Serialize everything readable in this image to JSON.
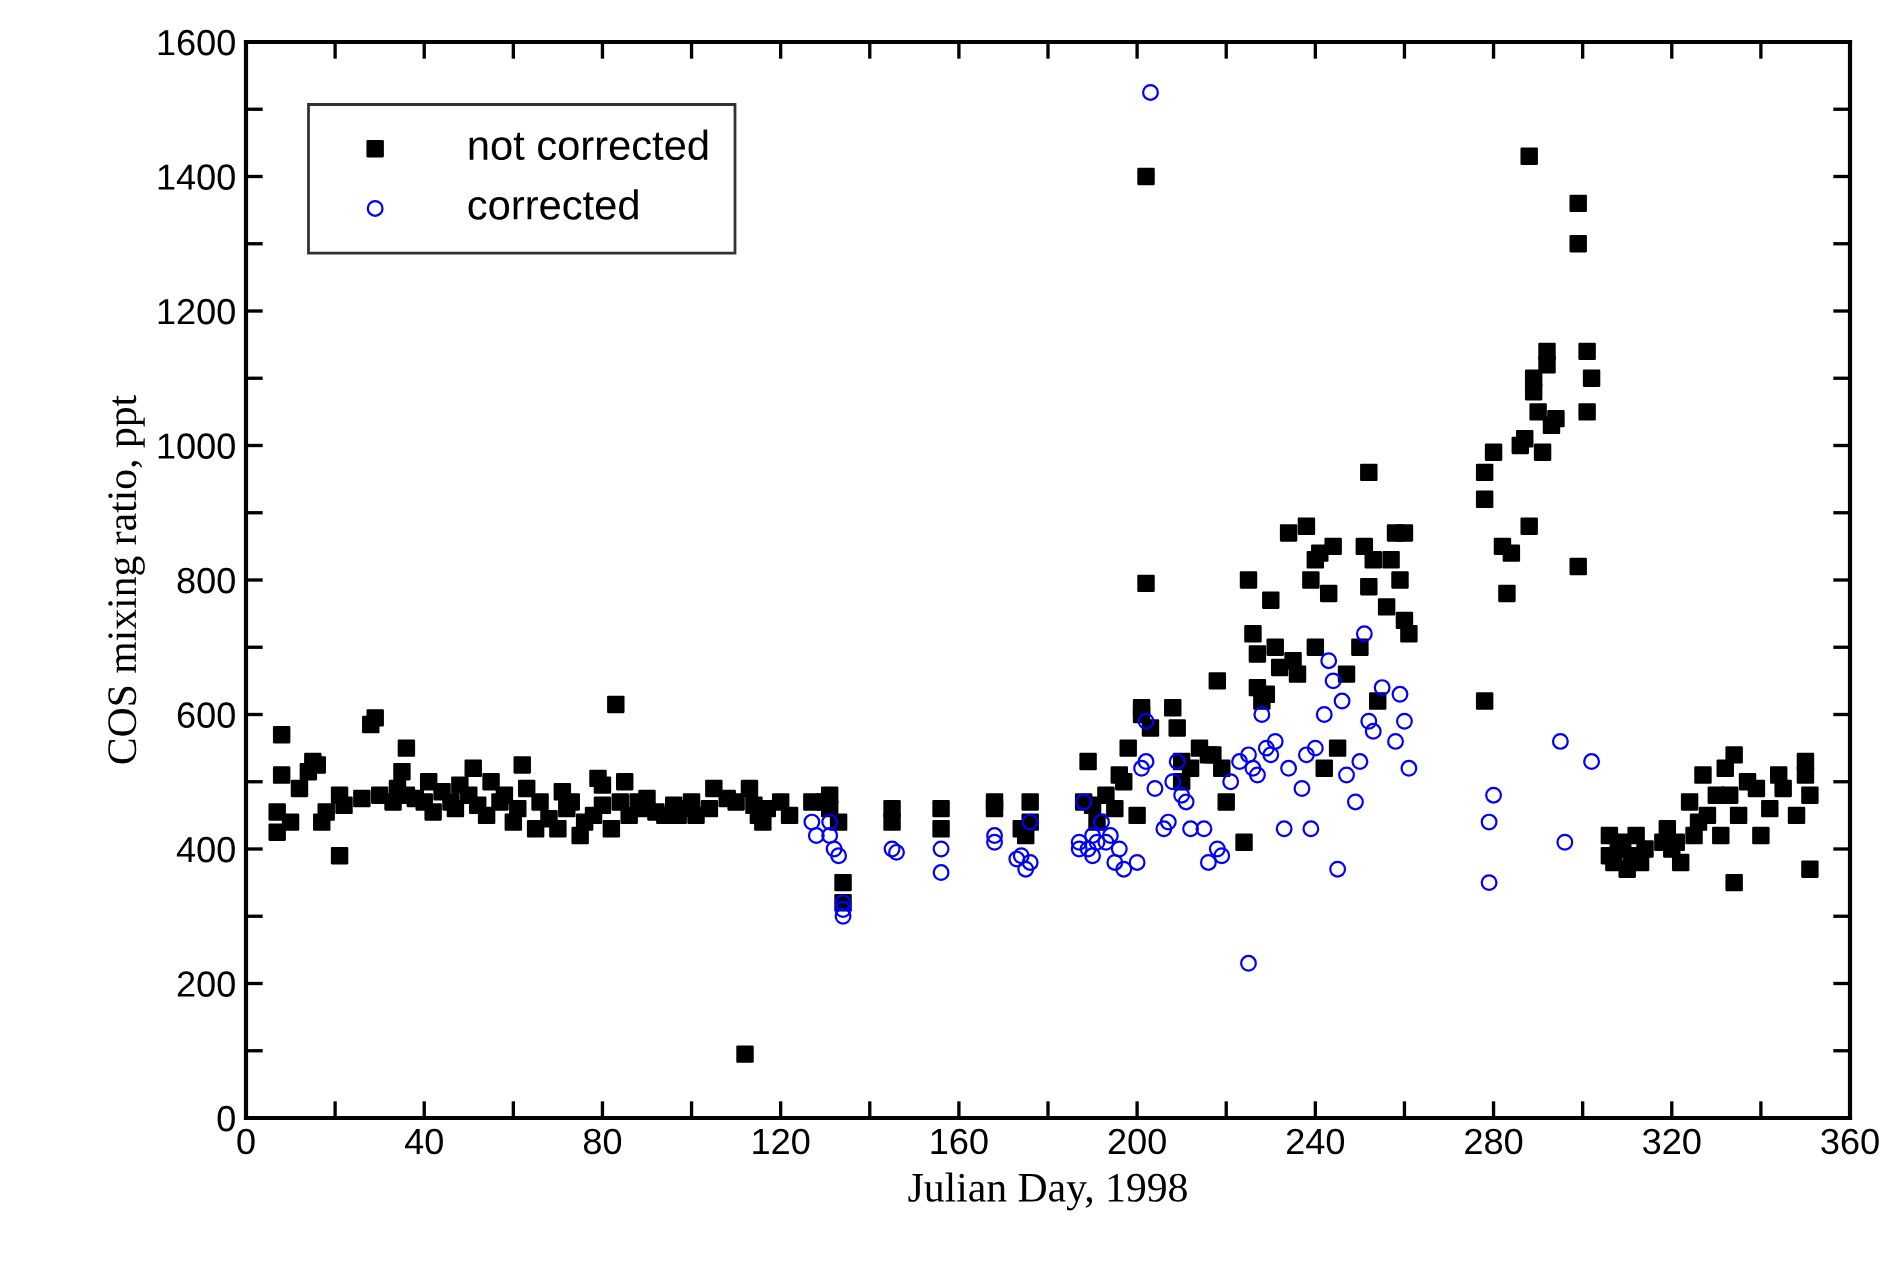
{
  "chart_data": {
    "type": "scatter",
    "xlabel": "Julian Day, 1998",
    "ylabel": "COS mixing ratio, ppt",
    "xlim": [
      0,
      360
    ],
    "ylim": [
      0,
      1600
    ],
    "xticks": [
      0,
      {
        "value": 20,
        "label": null
      },
      40,
      {
        "value": 60,
        "label": null
      },
      80,
      {
        "value": 100,
        "label": null
      },
      120,
      {
        "value": 140,
        "label": null
      },
      160,
      {
        "value": 180,
        "label": null
      },
      200,
      {
        "value": 220,
        "label": null
      },
      240,
      {
        "value": 260,
        "label": null
      },
      280,
      {
        "value": 300,
        "label": null
      },
      320,
      {
        "value": 340,
        "label": null
      },
      360
    ],
    "yticks": [
      0,
      {
        "value": 100,
        "label": null
      },
      200,
      {
        "value": 300,
        "label": null
      },
      400,
      {
        "value": 500,
        "label": null
      },
      600,
      {
        "value": 700,
        "label": null
      },
      800,
      {
        "value": 900,
        "label": null
      },
      1000,
      {
        "value": 1100,
        "label": null
      },
      1200,
      {
        "value": 1300,
        "label": null
      },
      1400,
      {
        "value": 1500,
        "label": null
      },
      1600
    ],
    "grid": false,
    "legend": "top left",
    "series": [
      {
        "name": "not corrected",
        "color": "#000000",
        "marker": "square",
        "x": [
          7,
          7,
          8,
          8,
          10,
          12,
          14,
          15,
          16,
          17,
          18,
          21,
          21,
          22,
          26,
          28,
          29,
          30,
          33,
          34,
          35,
          36,
          36,
          38,
          40,
          41,
          42,
          44,
          46,
          47,
          48,
          50,
          51,
          52,
          54,
          55,
          57,
          58,
          60,
          61,
          62,
          63,
          65,
          66,
          68,
          70,
          71,
          72,
          73,
          75,
          76,
          78,
          79,
          80,
          80,
          82,
          83,
          84,
          85,
          86,
          88,
          89,
          90,
          92,
          94,
          96,
          97,
          98,
          100,
          101,
          104,
          105,
          108,
          110,
          112,
          113,
          114,
          115,
          116,
          117,
          120,
          122,
          127,
          130,
          131,
          131,
          133,
          134,
          134,
          145,
          145,
          156,
          156,
          168,
          168,
          176,
          176,
          174,
          175,
          188,
          189,
          190,
          191,
          193,
          195,
          196,
          197,
          198,
          200,
          201,
          201,
          202,
          202,
          203,
          208,
          209,
          210,
          210,
          212,
          214,
          216,
          217,
          218,
          219,
          220,
          224,
          225,
          226,
          227,
          227,
          228,
          229,
          230,
          231,
          232,
          234,
          235,
          236,
          238,
          239,
          240,
          240,
          241,
          242,
          243,
          244,
          245,
          247,
          250,
          251,
          252,
          252,
          253,
          254,
          256,
          257,
          258,
          259,
          260,
          260,
          261,
          278,
          278,
          278,
          280,
          282,
          283,
          284,
          286,
          287,
          288,
          288,
          289,
          289,
          290,
          291,
          292,
          292,
          293,
          294,
          299,
          299,
          299,
          301,
          301,
          302,
          306,
          306,
          307,
          308,
          309,
          310,
          311,
          312,
          313,
          314,
          318,
          319,
          320,
          321,
          322,
          324,
          325,
          326,
          327,
          328,
          330,
          331,
          332,
          333,
          334,
          334,
          335,
          337,
          339,
          340,
          342,
          344,
          345,
          348,
          350,
          350,
          351,
          351
        ],
        "values": [
          425,
          455,
          510,
          570,
          440,
          490,
          515,
          530,
          525,
          440,
          455,
          390,
          480,
          465,
          475,
          585,
          595,
          480,
          470,
          490,
          515,
          550,
          480,
          475,
          470,
          500,
          455,
          485,
          470,
          460,
          495,
          480,
          520,
          465,
          450,
          500,
          470,
          480,
          440,
          460,
          525,
          490,
          430,
          470,
          445,
          430,
          485,
          460,
          470,
          420,
          440,
          450,
          505,
          495,
          465,
          430,
          615,
          470,
          500,
          450,
          470,
          460,
          475,
          455,
          450,
          465,
          450,
          460,
          470,
          450,
          460,
          490,
          475,
          470,
          95,
          490,
          465,
          450,
          440,
          460,
          470,
          450,
          470,
          470,
          480,
          460,
          440,
          350,
          320,
          460,
          440,
          460,
          430,
          460,
          470,
          470,
          440,
          430,
          420,
          470,
          530,
          465,
          440,
          480,
          460,
          510,
          500,
          550,
          450,
          610,
          600,
          1400,
          795,
          580,
          610,
          580,
          530,
          500,
          520,
          550,
          540,
          540,
          650,
          520,
          470,
          410,
          800,
          720,
          690,
          640,
          620,
          630,
          770,
          700,
          670,
          870,
          680,
          660,
          880,
          800,
          830,
          700,
          840,
          520,
          780,
          850,
          550,
          660,
          700,
          850,
          790,
          960,
          830,
          620,
          760,
          830,
          870,
          800,
          870,
          740,
          720,
          620,
          960,
          920,
          990,
          850,
          780,
          840,
          1000,
          1010,
          880,
          1430,
          1080,
          1100,
          1050,
          990,
          1120,
          1140,
          1030,
          1040,
          1360,
          1300,
          820,
          1140,
          1050,
          1100,
          390,
          420,
          380,
          400,
          410,
          370,
          390,
          420,
          380,
          400,
          410,
          430,
          400,
          410,
          380,
          470,
          420,
          440,
          510,
          450,
          480,
          420,
          520,
          480,
          350,
          540,
          450,
          500,
          490,
          420,
          460,
          510,
          490,
          450,
          530,
          510,
          480,
          370
        ]
      },
      {
        "name": "corrected",
        "color": "#0000ff",
        "marker": "circle",
        "x": [
          127,
          128,
          131,
          131,
          132,
          133,
          134,
          134,
          134,
          145,
          146,
          156,
          156,
          168,
          168,
          173,
          174,
          175,
          176,
          176,
          187,
          187,
          188,
          189,
          190,
          190,
          191,
          192,
          193,
          194,
          195,
          196,
          197,
          200,
          201,
          202,
          202,
          203,
          204,
          206,
          207,
          208,
          209,
          210,
          211,
          212,
          215,
          216,
          218,
          219,
          221,
          223,
          225,
          225,
          226,
          227,
          228,
          229,
          230,
          231,
          233,
          234,
          237,
          238,
          239,
          240,
          242,
          243,
          244,
          245,
          246,
          247,
          249,
          250,
          251,
          252,
          253,
          255,
          258,
          259,
          260,
          261,
          279,
          279,
          280,
          295,
          296,
          302
        ],
        "values": [
          440,
          420,
          440,
          420,
          400,
          390,
          310,
          300,
          320,
          400,
          395,
          400,
          365,
          410,
          420,
          385,
          390,
          370,
          380,
          440,
          410,
          400,
          470,
          400,
          420,
          390,
          410,
          440,
          410,
          420,
          380,
          400,
          370,
          380,
          520,
          530,
          590,
          1525,
          490,
          430,
          440,
          500,
          530,
          480,
          470,
          430,
          430,
          380,
          400,
          390,
          500,
          530,
          230,
          540,
          520,
          510,
          600,
          550,
          540,
          560,
          430,
          520,
          490,
          540,
          430,
          550,
          600,
          680,
          650,
          370,
          620,
          510,
          470,
          530,
          720,
          590,
          575,
          640,
          560,
          630,
          590,
          520,
          350,
          440,
          480,
          560,
          410,
          530
        ]
      }
    ]
  }
}
